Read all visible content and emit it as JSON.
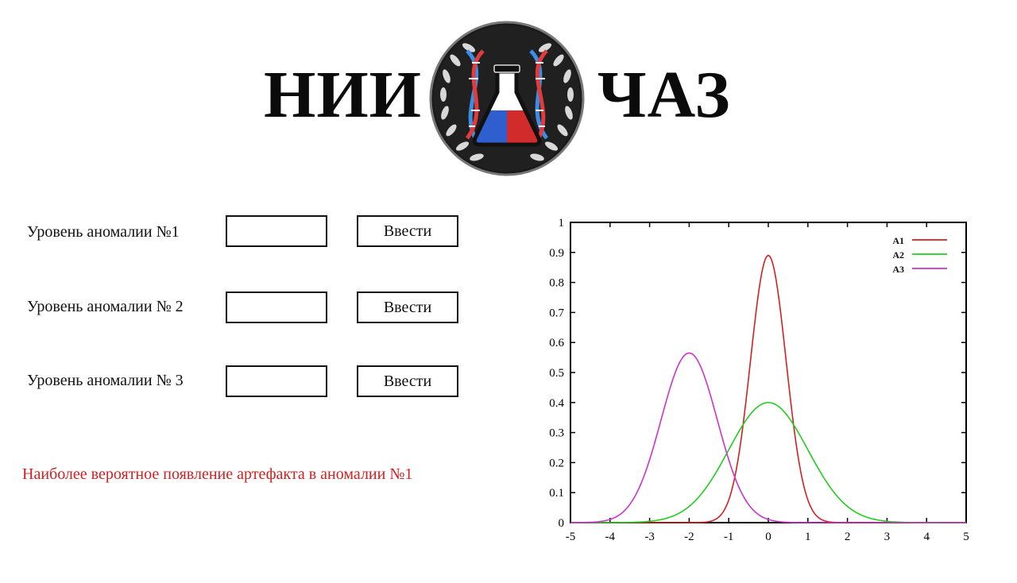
{
  "header": {
    "left_title": "НИИ",
    "right_title": "ЧАЗ",
    "logo_icon": "lab-flask-dna-laurel-emblem-icon"
  },
  "form": {
    "rows": [
      {
        "label": "Уровень аномалии №1",
        "value": "",
        "button_label": "Ввести"
      },
      {
        "label": "Уровень аномалии № 2",
        "value": "",
        "button_label": "Ввести"
      },
      {
        "label": "Уровень аномалии № 3",
        "value": "",
        "button_label": "Ввести"
      }
    ]
  },
  "result": {
    "text": "Наиболее вероятное появление артефакта в аномалии №1",
    "color": "#d42020"
  },
  "chart_data": {
    "type": "line",
    "title": "",
    "xlabel": "",
    "ylabel": "",
    "xlim": [
      -5,
      5
    ],
    "ylim": [
      0,
      1
    ],
    "x_ticks": [
      -5,
      -4,
      -3,
      -2,
      -1,
      0,
      1,
      2,
      3,
      4,
      5
    ],
    "y_ticks": [
      0,
      0.1,
      0.2,
      0.3,
      0.4,
      0.5,
      0.6,
      0.7,
      0.8,
      0.9,
      1
    ],
    "grid": false,
    "legend_position": "top-right",
    "series": [
      {
        "name": "A1",
        "color": "#d42020",
        "distribution": "normal",
        "mean": 0,
        "std": 0.45,
        "peak": 0.89
      },
      {
        "name": "A2",
        "color": "#22cc22",
        "distribution": "normal",
        "mean": 0,
        "std": 1.0,
        "peak": 0.4
      },
      {
        "name": "A3",
        "color": "#cc33cc",
        "distribution": "normal",
        "mean": -2,
        "std": 0.71,
        "peak": 0.565
      }
    ]
  }
}
